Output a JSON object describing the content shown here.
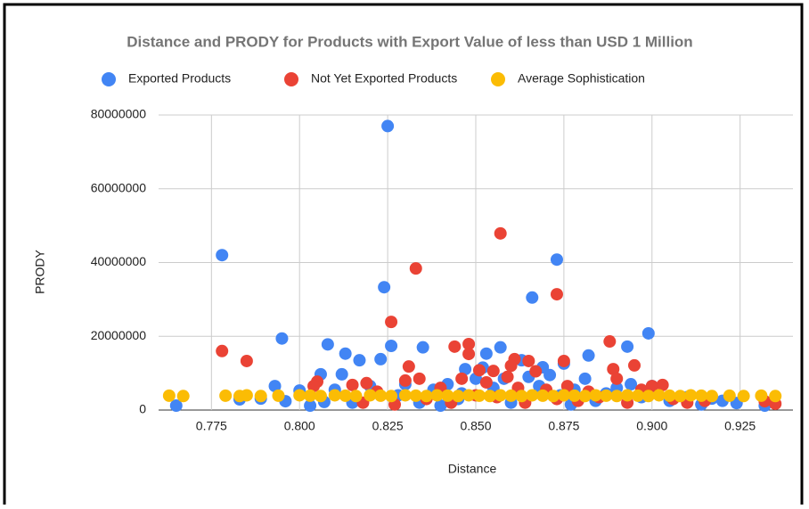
{
  "chart_data": {
    "type": "scatter",
    "title": "Distance and PRODY for Products with Export Value of less than USD 1 Million",
    "x_label": "Distance",
    "y_label": "PRODY",
    "xlim": [
      0.76,
      0.94
    ],
    "ylim": [
      0,
      80000000
    ],
    "xticks": [
      0.775,
      {
        "value": 0.8,
        "label": "0.800"
      },
      0.825,
      {
        "value": 0.85,
        "label": "0.850"
      },
      0.875,
      {
        "value": 0.9,
        "label": "0.900"
      },
      0.925
    ],
    "yticks": [
      0,
      20000000,
      40000000,
      60000000,
      80000000
    ],
    "grid": true,
    "legend": "top",
    "series": [
      {
        "name": "Exported Products",
        "color": "#4285f4",
        "x": [
          0.778,
          0.795,
          0.824,
          0.825,
          0.873,
          0.866,
          0.899,
          0.826,
          0.808,
          0.813,
          0.817,
          0.823,
          0.835,
          0.857,
          0.853,
          0.882,
          0.893,
          0.875,
          0.869,
          0.847,
          0.765,
          0.783,
          0.789,
          0.793,
          0.796,
          0.8,
          0.803,
          0.806,
          0.812,
          0.924,
          0.932,
          0.917,
          0.81,
          0.815,
          0.82,
          0.828,
          0.83,
          0.834,
          0.838,
          0.842,
          0.845,
          0.85,
          0.852,
          0.855,
          0.858,
          0.86,
          0.862,
          0.865,
          0.868,
          0.871,
          0.874,
          0.878,
          0.881,
          0.884,
          0.887,
          0.89,
          0.894,
          0.897,
          0.9,
          0.905,
          0.91,
          0.914,
          0.92,
          0.807,
          0.84,
          0.877,
          0.846,
          0.863
        ],
        "values": [
          42000000,
          19400000,
          33300000,
          77000000,
          40800000,
          30500000,
          20800000,
          17400000,
          17800000,
          15300000,
          13500000,
          13800000,
          17000000,
          17000000,
          15300000,
          14800000,
          17200000,
          12600000,
          11600000,
          11100000,
          1200000,
          2900000,
          3100000,
          6500000,
          2400000,
          5300000,
          1200000,
          9700000,
          9700000,
          1900000,
          1200000,
          3100000,
          5500000,
          2000000,
          6500000,
          4000000,
          7000000,
          2000000,
          5500000,
          7000000,
          3000000,
          8500000,
          11500000,
          6000000,
          8500000,
          2000000,
          5000000,
          9000000,
          6500000,
          9500000,
          4000000,
          5500000,
          8500000,
          2500000,
          4500000,
          6000000,
          7000000,
          3500000,
          6500000,
          2500000,
          3500000,
          1500000,
          2500000,
          2200000,
          1200000,
          1500000,
          4500000,
          13500000
        ]
      },
      {
        "name": "Not Yet Exported Products",
        "color": "#ea4335",
        "x": [
          0.778,
          0.785,
          0.805,
          0.826,
          0.833,
          0.857,
          0.873,
          0.848,
          0.844,
          0.848,
          0.865,
          0.855,
          0.888,
          0.895,
          0.889,
          0.875,
          0.861,
          0.831,
          0.815,
          0.819,
          0.834,
          0.903,
          0.935,
          0.932,
          0.804,
          0.818,
          0.822,
          0.827,
          0.83,
          0.836,
          0.84,
          0.843,
          0.846,
          0.85,
          0.853,
          0.856,
          0.859,
          0.862,
          0.864,
          0.867,
          0.87,
          0.873,
          0.876,
          0.879,
          0.882,
          0.885,
          0.89,
          0.893,
          0.897,
          0.9,
          0.906,
          0.91,
          0.915,
          0.86,
          0.851
        ],
        "values": [
          16000000,
          13300000,
          7700000,
          23900000,
          38400000,
          47900000,
          31400000,
          17900000,
          17200000,
          15200000,
          13300000,
          10600000,
          18600000,
          12100000,
          11100000,
          13300000,
          13800000,
          11800000,
          6800000,
          7300000,
          8500000,
          6800000,
          1700000,
          2400000,
          6500000,
          2000000,
          5000000,
          1500000,
          8000000,
          3000000,
          6000000,
          2000000,
          8500000,
          4000000,
          7500000,
          3500000,
          9000000,
          6000000,
          2000000,
          10500000,
          5500000,
          3000000,
          6500000,
          2500000,
          5000000,
          3500000,
          8500000,
          2000000,
          5500000,
          6500000,
          3000000,
          2000000,
          2500000,
          12000000,
          10800000
        ]
      },
      {
        "name": "Average Sophistication",
        "color": "#fbbc04",
        "x": [
          0.763,
          0.767,
          0.779,
          0.783,
          0.785,
          0.789,
          0.794,
          0.8,
          0.803,
          0.806,
          0.81,
          0.813,
          0.816,
          0.82,
          0.823,
          0.826,
          0.83,
          0.833,
          0.836,
          0.839,
          0.842,
          0.845,
          0.848,
          0.851,
          0.854,
          0.857,
          0.86,
          0.863,
          0.866,
          0.869,
          0.872,
          0.875,
          0.878,
          0.881,
          0.884,
          0.887,
          0.89,
          0.893,
          0.896,
          0.899,
          0.902,
          0.905,
          0.908,
          0.911,
          0.914,
          0.917,
          0.922,
          0.926,
          0.931,
          0.935
        ],
        "values": [
          3900000,
          3800000,
          3900000,
          3800000,
          4000000,
          3800000,
          3900000,
          4000000,
          3900000,
          3800000,
          4000000,
          3900000,
          3800000,
          4000000,
          3900000,
          3800000,
          4000000,
          3900000,
          3800000,
          4000000,
          3900000,
          3800000,
          4000000,
          3900000,
          3800000,
          4000000,
          3900000,
          3800000,
          4000000,
          3900000,
          3800000,
          4000000,
          3900000,
          3800000,
          4000000,
          3900000,
          3800000,
          4000000,
          3900000,
          3800000,
          4000000,
          3900000,
          3800000,
          4000000,
          3900000,
          3800000,
          3900000,
          3800000,
          3900000,
          3800000
        ]
      }
    ]
  }
}
